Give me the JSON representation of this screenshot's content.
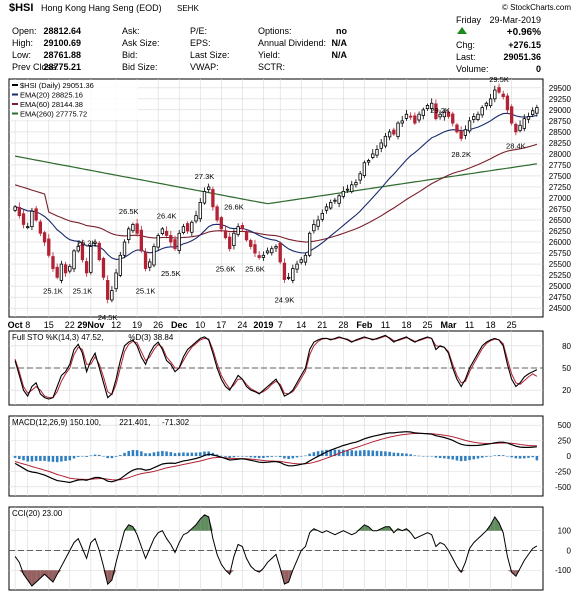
{
  "header": {
    "symbol": "$HSI",
    "name": "Hong Kong Hang Seng (EOD)",
    "exchange": "SEHK",
    "copyright": "© StockCharts.com",
    "day": "Friday",
    "date": "29-Mar-2019"
  },
  "quote": {
    "rows": [
      [
        {
          "label": "Open:",
          "value": "28812.64"
        },
        {
          "label": "Ask:",
          "value": ""
        },
        {
          "label": "P/E:",
          "value": ""
        },
        {
          "label": "Options:",
          "value": "no"
        }
      ],
      [
        {
          "label": "High:",
          "value": "29100.69"
        },
        {
          "label": "Ask Size:",
          "value": ""
        },
        {
          "label": "EPS:",
          "value": ""
        },
        {
          "label": "Annual Dividend:",
          "value": "N/A"
        }
      ],
      [
        {
          "label": "Low:",
          "value": "28761.88"
        },
        {
          "label": "Bid:",
          "value": ""
        },
        {
          "label": "Last Size:",
          "value": ""
        },
        {
          "label": "Yield:",
          "value": "N/A"
        }
      ],
      [
        {
          "label": "Prev Close:",
          "value": "28775.21"
        },
        {
          "label": "Bid Size:",
          "value": ""
        },
        {
          "label": "VWAP:",
          "value": ""
        },
        {
          "label": "SCTR:",
          "value": ""
        }
      ]
    ],
    "right": {
      "pct_change": "+0.96%",
      "chg_label": "Chg:",
      "chg_value": "+276.15",
      "last_label": "Last:",
      "last_value": "29051.36",
      "volume_label": "Volume:",
      "volume_value": "0"
    }
  },
  "colors": {
    "up": "#000000",
    "down": "#b22234",
    "ema20": "#1a2a6c",
    "ema60": "#7a1f2b",
    "ema260": "#2e6b2e",
    "macd_hist": "#2f7fc1",
    "cci_fill": "#4f7f4f",
    "cci_fill_neg": "#8a4f4f",
    "grid": "#d9d9d9",
    "up_arrow": "#1e8a1e"
  },
  "chart_data": [
    {
      "type": "candlestick",
      "legend": [
        {
          "label": "$HSI (Daily) 29051.36",
          "color": "#000000"
        },
        {
          "label": "EMA(20) 28825.16",
          "color": "#1a2a6c"
        },
        {
          "label": "EMA(60) 28144.38",
          "color": "#7a1f2b"
        },
        {
          "label": "EMA(260) 27775.72",
          "color": "#2e6b2e"
        }
      ],
      "ylim": [
        24300,
        29700
      ],
      "y_ticks": [
        24500,
        24750,
        25000,
        25250,
        25500,
        25750,
        26000,
        26250,
        26500,
        26750,
        27000,
        27250,
        27500,
        27750,
        28000,
        28250,
        28500,
        28750,
        29000,
        29250,
        29500
      ],
      "x_labels": [
        "Oct",
        "8",
        "15",
        "22",
        "29Nov",
        "12",
        "19",
        "26",
        "Dec",
        "10",
        "17",
        "24",
        "2019",
        "7",
        "14",
        "21",
        "28",
        "Feb",
        "11",
        "18",
        "25",
        "Mar",
        "11",
        "18",
        "25"
      ],
      "annotations": [
        {
          "text": "25.1K",
          "bar": 9
        },
        {
          "text": "26.2K",
          "bar": 17
        },
        {
          "text": "25.1K",
          "bar": 16
        },
        {
          "text": "24.5K",
          "bar": 22
        },
        {
          "text": "26.5K",
          "bar": 27
        },
        {
          "text": "25.1K",
          "bar": 31
        },
        {
          "text": "26.4K",
          "bar": 36
        },
        {
          "text": "25.5K",
          "bar": 37
        },
        {
          "text": "27.3K",
          "bar": 45
        },
        {
          "text": "26.6K",
          "bar": 52
        },
        {
          "text": "25.6K",
          "bar": 50
        },
        {
          "text": "25.6K",
          "bar": 57
        },
        {
          "text": "24.9K",
          "bar": 64
        },
        {
          "text": "29.2K",
          "bar": 101
        },
        {
          "text": "28.2K",
          "bar": 106
        },
        {
          "text": "29.5K",
          "bar": 115
        },
        {
          "text": "28.4K",
          "bar": 119
        }
      ],
      "close": [
        26800,
        26600,
        26400,
        26350,
        26700,
        26500,
        26200,
        26000,
        25700,
        25400,
        25200,
        25500,
        25300,
        25450,
        25800,
        25900,
        25600,
        25300,
        25900,
        26000,
        25600,
        25200,
        24700,
        24900,
        25300,
        25700,
        26000,
        26300,
        26400,
        26200,
        25800,
        25400,
        25550,
        25900,
        26150,
        26300,
        26150,
        26000,
        25850,
        26200,
        26350,
        26250,
        26450,
        26600,
        26900,
        27150,
        27250,
        26800,
        26500,
        26300,
        26100,
        25850,
        26200,
        26350,
        26300,
        26050,
        25900,
        25750,
        25650,
        25700,
        25800,
        25850,
        25900,
        25550,
        25150,
        25200,
        25400,
        25500,
        25600,
        25700,
        26200,
        26400,
        26500,
        26650,
        26800,
        26900,
        26950,
        27050,
        27150,
        27200,
        27300,
        27350,
        27550,
        27800,
        27850,
        28000,
        28100,
        28250,
        28400,
        28500,
        28450,
        28700,
        28750,
        28900,
        28850,
        28700,
        28900,
        29000,
        29100,
        29150,
        28800,
        28900,
        28950,
        28850,
        28700,
        28500,
        28350,
        28550,
        28750,
        28850,
        28900,
        29050,
        29150,
        29250,
        29450,
        29400,
        29300,
        29000,
        28700,
        28500,
        28650,
        28800,
        28850,
        28980,
        29051.36
      ],
      "series": [
        {
          "name": "EMA(20)",
          "last": 28825.16
        },
        {
          "name": "EMA(60)",
          "last": 28144.38
        },
        {
          "name": "EMA(260)",
          "last": 27775.72
        }
      ]
    },
    {
      "type": "line",
      "legend": [
        {
          "label": "Full STO %K(14,3) 47.52,",
          "color": "#000000"
        },
        {
          "label": "%D(3) 38.84",
          "color": "#b22234"
        }
      ],
      "ylim": [
        0,
        100
      ],
      "y_ticks": [
        20,
        50,
        80
      ],
      "k": [
        60,
        40,
        20,
        12,
        25,
        30,
        15,
        10,
        8,
        10,
        25,
        40,
        45,
        55,
        75,
        82,
        70,
        45,
        60,
        70,
        50,
        30,
        10,
        15,
        35,
        60,
        80,
        85,
        88,
        80,
        65,
        55,
        70,
        80,
        85,
        75,
        60,
        55,
        45,
        50,
        65,
        75,
        80,
        85,
        90,
        92,
        88,
        70,
        50,
        35,
        25,
        20,
        30,
        40,
        35,
        25,
        20,
        18,
        15,
        20,
        25,
        30,
        35,
        25,
        12,
        15,
        20,
        30,
        40,
        50,
        75,
        85,
        88,
        90,
        90,
        88,
        90,
        92,
        90,
        88,
        85,
        88,
        90,
        92,
        90,
        88,
        90,
        92,
        94,
        90,
        85,
        88,
        90,
        92,
        88,
        85,
        88,
        90,
        92,
        90,
        75,
        80,
        78,
        70,
        50,
        35,
        25,
        35,
        50,
        60,
        70,
        80,
        85,
        88,
        90,
        88,
        80,
        55,
        35,
        25,
        30,
        38,
        42,
        45,
        47.52
      ],
      "d": [
        62,
        45,
        25,
        16,
        20,
        25,
        20,
        12,
        10,
        10,
        18,
        32,
        42,
        50,
        68,
        78,
        75,
        55,
        55,
        65,
        55,
        38,
        18,
        14,
        28,
        50,
        72,
        82,
        86,
        84,
        72,
        60,
        65,
        75,
        82,
        78,
        65,
        58,
        50,
        50,
        60,
        70,
        78,
        83,
        88,
        90,
        89,
        75,
        56,
        40,
        30,
        22,
        27,
        35,
        35,
        28,
        22,
        19,
        16,
        18,
        22,
        28,
        32,
        28,
        16,
        15,
        18,
        26,
        36,
        46,
        68,
        80,
        86,
        89,
        90,
        89,
        89,
        91,
        90,
        89,
        86,
        87,
        89,
        91,
        90,
        89,
        89,
        91,
        93,
        91,
        87,
        87,
        89,
        91,
        89,
        86,
        87,
        89,
        91,
        90,
        80,
        79,
        78,
        72,
        55,
        40,
        30,
        32,
        45,
        56,
        66,
        76,
        83,
        87,
        89,
        88,
        83,
        62,
        42,
        30,
        28,
        33,
        38,
        42,
        38.84
      ]
    },
    {
      "type": "line",
      "legend": [
        {
          "label": "MACD(12,26,9) 150.100,",
          "color": "#000000"
        },
        {
          "label": "221.401,",
          "color": "#b22234"
        },
        {
          "label": "-71.302",
          "color": "#2f7fc1"
        }
      ],
      "ylim": [
        -650,
        650
      ],
      "y_ticks": [
        -500,
        -250,
        0,
        250,
        500
      ],
      "macd": [
        -120,
        -160,
        -200,
        -240,
        -260,
        -270,
        -290,
        -310,
        -340,
        -370,
        -400,
        -410,
        -420,
        -430,
        -410,
        -390,
        -385,
        -395,
        -370,
        -350,
        -350,
        -370,
        -410,
        -420,
        -400,
        -370,
        -320,
        -270,
        -230,
        -210,
        -210,
        -230,
        -220,
        -190,
        -160,
        -130,
        -120,
        -115,
        -120,
        -100,
        -80,
        -70,
        -55,
        -40,
        -20,
        10,
        30,
        20,
        0,
        -20,
        -40,
        -65,
        -60,
        -50,
        -45,
        -55,
        -70,
        -85,
        -100,
        -105,
        -100,
        -95,
        -90,
        -105,
        -140,
        -160,
        -160,
        -150,
        -135,
        -120,
        -80,
        -40,
        -5,
        30,
        65,
        95,
        120,
        145,
        170,
        190,
        210,
        225,
        250,
        280,
        300,
        320,
        335,
        350,
        365,
        375,
        375,
        385,
        390,
        395,
        390,
        375,
        370,
        365,
        360,
        355,
        330,
        315,
        300,
        280,
        255,
        220,
        190,
        175,
        170,
        170,
        172,
        180,
        190,
        200,
        215,
        225,
        225,
        210,
        185,
        160,
        145,
        140,
        140,
        145,
        150.1
      ],
      "signal": [
        -90,
        -110,
        -130,
        -150,
        -170,
        -190,
        -210,
        -230,
        -250,
        -275,
        -300,
        -320,
        -340,
        -360,
        -370,
        -375,
        -378,
        -380,
        -378,
        -372,
        -368,
        -368,
        -375,
        -385,
        -388,
        -385,
        -372,
        -352,
        -328,
        -305,
        -286,
        -275,
        -264,
        -250,
        -232,
        -212,
        -194,
        -178,
        -166,
        -153,
        -138,
        -124,
        -110,
        -96,
        -81,
        -63,
        -44,
        -31,
        -25,
        -24,
        -27,
        -35,
        -40,
        -42,
        -43,
        -45,
        -50,
        -57,
        -65,
        -73,
        -79,
        -82,
        -84,
        -88,
        -99,
        -111,
        -121,
        -127,
        -129,
        -127,
        -118,
        -102,
        -83,
        -60,
        -35,
        -9,
        17,
        43,
        68,
        92,
        116,
        138,
        160,
        184,
        207,
        230,
        251,
        271,
        290,
        307,
        321,
        334,
        345,
        355,
        362,
        365,
        366,
        366,
        365,
        363,
        356,
        348,
        338,
        327,
        312,
        294,
        274,
        254,
        237,
        224,
        213,
        207,
        203,
        203,
        205,
        209,
        212,
        212,
        207,
        198,
        187,
        178,
        170,
        165,
        221.4
      ],
      "histogram": [
        -30,
        -50,
        -70,
        -90,
        -90,
        -80,
        -80,
        -80,
        -90,
        -95,
        -100,
        -90,
        -80,
        -70,
        -40,
        -15,
        -7,
        -15,
        8,
        22,
        18,
        -2,
        -35,
        -35,
        -12,
        15,
        52,
        82,
        98,
        95,
        76,
        45,
        44,
        60,
        72,
        82,
        74,
        63,
        46,
        53,
        58,
        54,
        55,
        56,
        61,
        73,
        74,
        51,
        25,
        4,
        -13,
        -30,
        -20,
        -8,
        -2,
        -10,
        -20,
        -28,
        -35,
        -32,
        -21,
        -13,
        -6,
        -17,
        -41,
        -49,
        -39,
        -23,
        -6,
        7,
        38,
        62,
        78,
        90,
        100,
        104,
        103,
        102,
        102,
        98,
        94,
        87,
        90,
        96,
        93,
        90,
        84,
        79,
        75,
        68,
        54,
        51,
        45,
        40,
        28,
        10,
        4,
        -1,
        -5,
        -8,
        -26,
        -33,
        -38,
        -47,
        -57,
        -74,
        -84,
        -79,
        -67,
        -54,
        -41,
        -27,
        -13,
        -3,
        10,
        16,
        13,
        -2,
        -22,
        -38,
        -42,
        -38,
        -30,
        -20,
        -71.302
      ]
    },
    {
      "type": "area",
      "legend": [
        {
          "label": "CCI(20) 23.00",
          "color": "#000000"
        }
      ],
      "ylim": [
        -200,
        220
      ],
      "y_ticks": [
        -100,
        0,
        100
      ],
      "values": [
        -30,
        -60,
        -120,
        -150,
        -180,
        -160,
        -140,
        -120,
        -140,
        -160,
        -120,
        -80,
        -40,
        0,
        40,
        60,
        10,
        -40,
        40,
        60,
        0,
        -80,
        -170,
        -150,
        -60,
        20,
        100,
        130,
        120,
        80,
        20,
        -40,
        10,
        60,
        90,
        100,
        60,
        30,
        -10,
        40,
        80,
        90,
        110,
        130,
        160,
        180,
        170,
        60,
        -20,
        -70,
        -100,
        -120,
        -30,
        30,
        20,
        -40,
        -80,
        -100,
        -110,
        -90,
        -60,
        -40,
        -20,
        -90,
        -170,
        -160,
        -100,
        -50,
        0,
        20,
        90,
        110,
        100,
        90,
        100,
        90,
        80,
        90,
        100,
        90,
        80,
        90,
        110,
        130,
        120,
        100,
        100,
        110,
        120,
        120,
        90,
        110,
        100,
        110,
        90,
        60,
        70,
        80,
        90,
        80,
        20,
        40,
        30,
        0,
        -40,
        -80,
        -110,
        -60,
        10,
        40,
        60,
        80,
        100,
        130,
        170,
        140,
        90,
        -30,
        -110,
        -130,
        -90,
        -50,
        -20,
        10,
        23
      ]
    }
  ]
}
